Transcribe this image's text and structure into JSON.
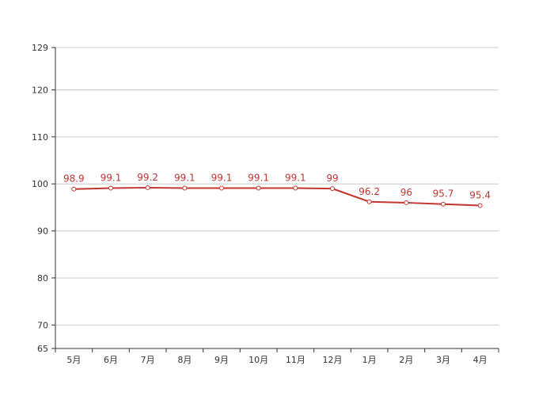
{
  "chart_data": {
    "type": "line",
    "categories": [
      "5月",
      "6月",
      "7月",
      "8月",
      "9月",
      "10月",
      "11月",
      "12月",
      "1月",
      "2月",
      "3月",
      "4月"
    ],
    "series": [
      {
        "values": [
          98.9,
          99.1,
          99.2,
          99.1,
          99.1,
          99.1,
          99.1,
          99,
          96.2,
          96,
          95.7,
          95.4
        ],
        "color": "#c23531"
      }
    ],
    "yticks": [
      65,
      70,
      80,
      90,
      100,
      110,
      120,
      129
    ],
    "ylim": [
      65,
      129
    ],
    "grid": true,
    "data_labels": true,
    "title": "",
    "xlabel": "",
    "ylabel": ""
  }
}
